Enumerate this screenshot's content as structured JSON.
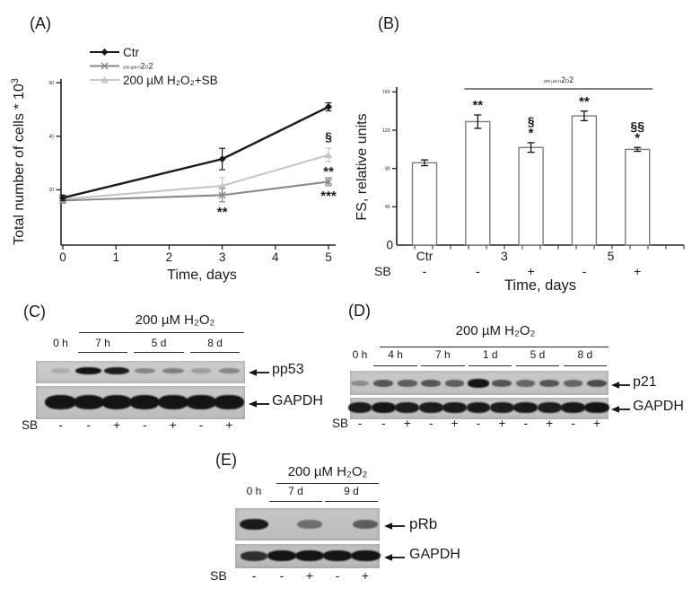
{
  "figure": {
    "background": "#ffffff"
  },
  "h2o2_tiny_parts": {
    "p1": "200 µM H",
    "p2": "2",
    "p3": "O",
    "p4": "2"
  },
  "chart_data": [
    {
      "id": "A",
      "type": "line",
      "panel_label": "(A)",
      "xlabel": "Time, days",
      "ylabel_main": "Total number of cells * 10",
      "ylabel_sup": "3",
      "x": [
        0,
        3,
        5
      ],
      "xticks": [
        0,
        1,
        2,
        3,
        4,
        5
      ],
      "yticks": [
        20,
        40,
        60
      ],
      "xlim": [
        0,
        5.4
      ],
      "ylim": [
        0,
        65
      ],
      "grid": false,
      "legend_position": "top-left-inside",
      "series": [
        {
          "name": "Ctr",
          "values": [
            17,
            31.5,
            51
          ],
          "errors": [
            1,
            4,
            1.5
          ],
          "color": "#1a1a1a",
          "marker": "diamond",
          "tiny_label": false
        },
        {
          "name": "200 µM H₂O₂",
          "values": [
            16,
            18,
            23
          ],
          "errors": [
            1,
            2.5,
            1.5
          ],
          "color": "#8a8a8a",
          "marker": "x",
          "tiny_label": true
        },
        {
          "name": "200 µM H₂O₂+SB",
          "values": [
            16.5,
            21.5,
            33
          ],
          "errors": [
            1,
            3,
            2.5
          ],
          "color": "#c6c6c6",
          "marker": "triangle",
          "tiny_label": false
        }
      ],
      "annotations": [
        {
          "text": "**",
          "day": 3,
          "series": "200 µM H₂O₂",
          "where": "below"
        },
        {
          "text": "§",
          "day": 5,
          "series": "200 µM H₂O₂+SB",
          "where": "above"
        },
        {
          "text": "**",
          "day": 5,
          "series": "200 µM H₂O₂+SB",
          "where": "below"
        },
        {
          "text": "***",
          "day": 5,
          "series": "200 µM H₂O₂",
          "where": "below"
        }
      ]
    },
    {
      "id": "B",
      "type": "bar",
      "panel_label": "(B)",
      "xlabel": "Time, days",
      "ylabel": "FS, relative units",
      "categories": [
        "Ctr",
        "3 (SB -)",
        "3 (SB +)",
        "5 (SB -)",
        "5 (SB +)"
      ],
      "values": [
        86,
        129,
        102,
        135,
        100
      ],
      "errors": [
        3,
        7,
        5,
        5,
        2
      ],
      "yticks": [
        0,
        40,
        80,
        120,
        160
      ],
      "ylim": [
        0,
        165
      ],
      "bar_fill": "#ffffff",
      "bar_stroke": "#7d7d7d",
      "group_labels": [
        {
          "text": "Ctr",
          "bars": [
            0
          ]
        },
        {
          "text": "3",
          "bars": [
            1,
            2
          ]
        },
        {
          "text": "5",
          "bars": [
            3,
            4
          ]
        }
      ],
      "sb_row": {
        "label": "SB",
        "values": [
          "-",
          "-",
          "+",
          "-",
          "+"
        ]
      },
      "bracket": {
        "from_bar": 1,
        "to_bar": 4
      },
      "annotations": [
        {
          "bar": 1,
          "lines": [
            "**"
          ]
        },
        {
          "bar": 2,
          "lines": [
            "§",
            "*"
          ]
        },
        {
          "bar": 3,
          "lines": [
            "**"
          ]
        },
        {
          "bar": 4,
          "lines": [
            "§§",
            "*"
          ]
        }
      ]
    }
  ],
  "blots": [
    {
      "id": "C",
      "panel_label": "(C)",
      "treatment_label": "200 µM H₂O₂",
      "time_groups": [
        {
          "label": "0 h",
          "lanes": [
            0
          ],
          "underline": false
        },
        {
          "label": "7 h",
          "lanes": [
            1,
            2
          ],
          "underline": true
        },
        {
          "label": "5 d",
          "lanes": [
            3,
            4
          ],
          "underline": true
        },
        {
          "label": "8 d",
          "lanes": [
            5,
            6
          ],
          "underline": true
        }
      ],
      "rows": [
        {
          "target": "pp53",
          "band_intensities": [
            0.15,
            0.95,
            0.9,
            0.35,
            0.38,
            0.22,
            0.35
          ]
        },
        {
          "target": "GAPDH",
          "band_intensities": [
            1,
            1,
            1,
            1,
            0.98,
            0.95,
            0.97
          ]
        }
      ],
      "sb_row": {
        "label": "SB",
        "values": [
          "-",
          "-",
          "+",
          "-",
          "+",
          "-",
          "+"
        ]
      }
    },
    {
      "id": "D",
      "panel_label": "(D)",
      "treatment_label": "200 µM H₂O₂",
      "time_groups": [
        {
          "label": "0 h",
          "lanes": [
            0
          ],
          "underline": false
        },
        {
          "label": "4 h",
          "lanes": [
            1,
            2
          ],
          "underline": true
        },
        {
          "label": "7 h",
          "lanes": [
            3,
            4
          ],
          "underline": true
        },
        {
          "label": "1 d",
          "lanes": [
            5,
            6
          ],
          "underline": true
        },
        {
          "label": "5 d",
          "lanes": [
            7,
            8
          ],
          "underline": true
        },
        {
          "label": "8 d",
          "lanes": [
            9,
            10
          ],
          "underline": true
        }
      ],
      "rows": [
        {
          "target": "p21",
          "band_intensities": [
            0.3,
            0.6,
            0.55,
            0.6,
            0.55,
            0.95,
            0.6,
            0.5,
            0.6,
            0.5,
            0.65
          ]
        },
        {
          "target": "GAPDH",
          "band_intensities": [
            0.9,
            0.95,
            0.9,
            0.9,
            0.92,
            0.92,
            0.9,
            0.92,
            0.9,
            0.92,
            0.95
          ]
        }
      ],
      "sb_row": {
        "label": "SB",
        "values": [
          "-",
          "-",
          "+",
          "-",
          "+",
          "-",
          "+",
          "-",
          "+",
          "-",
          "+"
        ]
      }
    },
    {
      "id": "E",
      "panel_label": "(E)",
      "treatment_label": "200 µM H₂O₂",
      "time_groups": [
        {
          "label": "0 h",
          "lanes": [
            0
          ],
          "underline": false
        },
        {
          "label": "7 d",
          "lanes": [
            1,
            2
          ],
          "underline": true
        },
        {
          "label": "9 d",
          "lanes": [
            3,
            4
          ],
          "underline": true
        }
      ],
      "rows": [
        {
          "target": "pRb",
          "band_intensities": [
            0.92,
            0,
            0.45,
            0,
            0.55
          ]
        },
        {
          "target": "GAPDH",
          "band_intensities": [
            0.8,
            0.97,
            0.97,
            0.95,
            1
          ]
        }
      ],
      "sb_row": {
        "label": "SB",
        "values": [
          "-",
          "-",
          "+",
          "-",
          "+"
        ]
      }
    }
  ]
}
